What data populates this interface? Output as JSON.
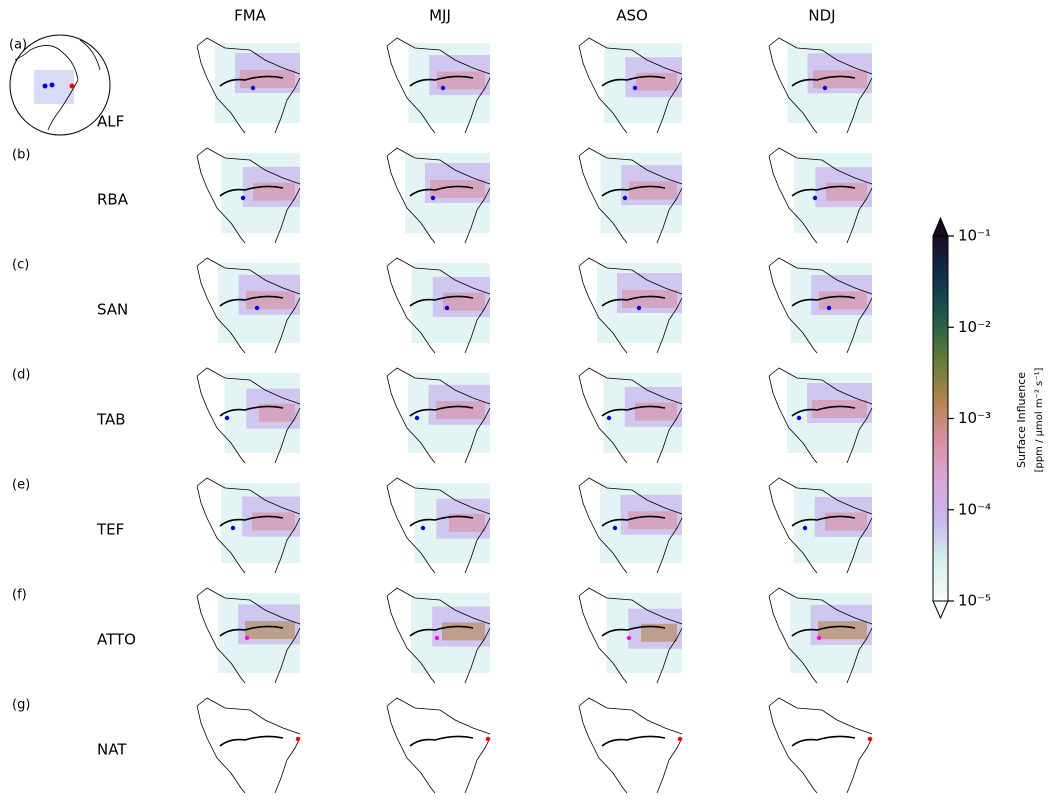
{
  "columns": [
    "FMA",
    "MJJ",
    "ASO",
    "NDJ"
  ],
  "rows": [
    {
      "letter": "(a)",
      "label": "ALF"
    },
    {
      "letter": "(b)",
      "label": "RBA"
    },
    {
      "letter": "(c)",
      "label": "SAN"
    },
    {
      "letter": "(d)",
      "label": "TAB"
    },
    {
      "letter": "(e)",
      "label": "TEF"
    },
    {
      "letter": "(f)",
      "label": "ATTO"
    },
    {
      "letter": "(g)",
      "label": "NAT"
    }
  ],
  "colorbar": {
    "label": "Surface Influence",
    "units": "[ppm / μmol m⁻² s⁻¹]",
    "log_scale": true,
    "lim": [
      1e-05,
      0.1
    ],
    "ticks": [
      {
        "value": 1e-05,
        "label": "10⁻⁵"
      },
      {
        "value": 0.0001,
        "label": "10⁻⁴"
      },
      {
        "value": 0.001,
        "label": "10⁻³"
      },
      {
        "value": 0.01,
        "label": "10⁻²"
      },
      {
        "value": 0.1,
        "label": "10⁻¹"
      }
    ],
    "colormap": [
      "#f7fdfb",
      "#d6f0ee",
      "#c8b8ee",
      "#d9a6d8",
      "#d98ea0",
      "#b0844a",
      "#5e7c34",
      "#1e5a4a",
      "#0e3050",
      "#1a0a20"
    ]
  }
}
